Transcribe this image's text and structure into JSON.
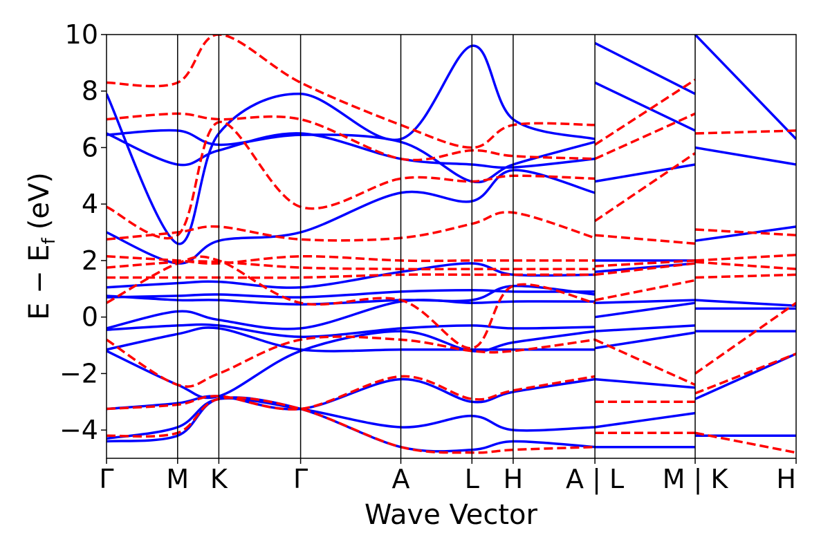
{
  "chart_data": {
    "type": "line",
    "xlabel": "Wave Vector",
    "ylabel": "E − E_f (eV)",
    "ylabel_parts": {
      "main": "E − E",
      "sub": "f",
      "unit": "(eV)"
    },
    "ylim": [
      -5,
      10
    ],
    "yticks": [
      -4,
      -2,
      0,
      2,
      4,
      6,
      8,
      10
    ],
    "ytick_labels": [
      "−4",
      "−2",
      "0",
      "2",
      "4",
      "6",
      "8",
      "10"
    ],
    "xlim": [
      0,
      9.7
    ],
    "kpoints": [
      {
        "label": "Γ",
        "x": 0.0
      },
      {
        "label": "M",
        "x": 1.0
      },
      {
        "label": "K",
        "x": 1.58
      },
      {
        "label": "Γ",
        "x": 2.73
      },
      {
        "label": "A",
        "x": 4.14
      },
      {
        "label": "L",
        "x": 5.14
      },
      {
        "label": "H",
        "x": 5.72
      },
      {
        "label": "A | L",
        "x": 6.87
      },
      {
        "label": "M | K",
        "x": 8.28
      },
      {
        "label": "H",
        "x": 9.7
      }
    ],
    "segment_breaks": [
      6.87,
      8.28
    ],
    "series": [
      {
        "style": "solid",
        "color": "#0000ff",
        "bands": [
          {
            "x": [
              0,
              1.0,
              1.58,
              2.73,
              4.14,
              5.14,
              5.72,
              6.87
            ],
            "y": [
              -4.4,
              -4.2,
              -2.9,
              -3.25,
              -4.6,
              -4.7,
              -4.4,
              -4.6
            ]
          },
          {
            "x": [
              0,
              1.0,
              1.58,
              2.73,
              4.14,
              5.14,
              5.72,
              6.87
            ],
            "y": [
              -4.3,
              -3.9,
              -2.9,
              -3.25,
              -3.9,
              -3.5,
              -4.0,
              -3.9
            ]
          },
          {
            "x": [
              0,
              1.0,
              1.58,
              2.73,
              4.14,
              5.14,
              5.72,
              6.87
            ],
            "y": [
              -3.25,
              -3.05,
              -2.8,
              -3.25,
              -2.2,
              -3.0,
              -2.65,
              -2.2
            ]
          },
          {
            "x": [
              0,
              1.0,
              1.58,
              2.73,
              4.14,
              5.14,
              5.72,
              6.87
            ],
            "y": [
              -1.2,
              -2.4,
              -2.8,
              -1.2,
              -0.5,
              -1.2,
              -0.9,
              -0.5
            ]
          },
          {
            "x": [
              0,
              1.0,
              1.58,
              2.73,
              4.14,
              5.14,
              5.72,
              6.87
            ],
            "y": [
              -1.15,
              -0.6,
              -0.4,
              -1.15,
              -1.15,
              -1.15,
              -1.15,
              -1.15
            ]
          },
          {
            "x": [
              0,
              1.0,
              1.58,
              2.73,
              4.14,
              5.14,
              5.72,
              6.87
            ],
            "y": [
              -0.45,
              -0.3,
              -0.3,
              -0.7,
              -0.4,
              -0.3,
              -0.4,
              -0.35
            ]
          },
          {
            "x": [
              0,
              1.0,
              1.58,
              2.73,
              4.14,
              5.14,
              5.72,
              6.87
            ],
            "y": [
              -0.4,
              0.2,
              -0.1,
              -0.4,
              0.55,
              0.5,
              0.55,
              0.55
            ]
          },
          {
            "x": [
              0,
              1.0,
              1.58,
              2.73,
              4.14,
              5.14,
              5.72,
              6.87
            ],
            "y": [
              0.7,
              0.75,
              0.8,
              0.7,
              0.9,
              0.95,
              0.9,
              0.9
            ]
          },
          {
            "x": [
              0,
              1.0,
              1.58,
              2.73,
              4.14,
              5.14,
              5.72,
              6.87
            ],
            "y": [
              0.75,
              0.6,
              0.6,
              0.45,
              0.6,
              0.6,
              1.1,
              0.8
            ]
          },
          {
            "x": [
              0,
              1.0,
              1.58,
              2.73,
              4.14,
              5.14,
              5.72,
              6.87
            ],
            "y": [
              1.05,
              1.2,
              1.25,
              1.05,
              1.6,
              1.9,
              1.5,
              1.5
            ]
          },
          {
            "x": [
              0,
              1.0,
              1.58,
              2.73,
              4.14,
              5.14,
              5.72,
              6.87
            ],
            "y": [
              3.0,
              1.9,
              2.7,
              3.0,
              4.4,
              4.1,
              5.2,
              4.4
            ]
          },
          {
            "x": [
              0,
              1.0,
              1.58,
              2.73,
              4.14,
              5.14,
              5.72,
              6.87
            ],
            "y": [
              6.5,
              5.4,
              5.9,
              6.5,
              5.6,
              5.4,
              5.3,
              5.6
            ]
          },
          {
            "x": [
              0,
              1.0,
              1.58,
              2.73,
              4.14,
              5.14,
              5.72,
              6.87
            ],
            "y": [
              6.45,
              6.6,
              6.1,
              6.45,
              6.2,
              4.8,
              5.4,
              6.2
            ]
          },
          {
            "x": [
              0,
              1.0,
              1.58,
              2.73,
              4.14,
              5.14,
              5.72,
              6.87
            ],
            "y": [
              7.9,
              2.6,
              6.5,
              7.9,
              6.3,
              9.6,
              7.0,
              6.3
            ]
          },
          {
            "x": [
              6.87,
              8.28
            ],
            "y": [
              -4.6,
              -4.6
            ]
          },
          {
            "x": [
              6.87,
              8.28
            ],
            "y": [
              -3.9,
              -3.4
            ]
          },
          {
            "x": [
              6.87,
              8.28
            ],
            "y": [
              -2.2,
              -2.5
            ]
          },
          {
            "x": [
              6.87,
              8.28
            ],
            "y": [
              -1.1,
              -0.55
            ]
          },
          {
            "x": [
              6.87,
              8.28
            ],
            "y": [
              -0.5,
              -0.3
            ]
          },
          {
            "x": [
              6.87,
              8.28
            ],
            "y": [
              0.0,
              0.5
            ]
          },
          {
            "x": [
              6.87,
              8.28
            ],
            "y": [
              0.5,
              0.6
            ]
          },
          {
            "x": [
              6.87,
              8.28
            ],
            "y": [
              1.6,
              1.9
            ]
          },
          {
            "x": [
              6.87,
              8.28
            ],
            "y": [
              2.0,
              2.0
            ]
          },
          {
            "x": [
              6.87,
              8.28
            ],
            "y": [
              4.8,
              5.4
            ]
          },
          {
            "x": [
              6.87,
              8.28
            ],
            "y": [
              8.3,
              6.6
            ]
          },
          {
            "x": [
              6.87,
              8.28
            ],
            "y": [
              9.7,
              7.9
            ]
          },
          {
            "x": [
              8.28,
              9.7
            ],
            "y": [
              -4.2,
              -4.2
            ]
          },
          {
            "x": [
              8.28,
              9.7
            ],
            "y": [
              -2.9,
              -1.3
            ]
          },
          {
            "x": [
              8.28,
              9.7
            ],
            "y": [
              -0.5,
              -0.5
            ]
          },
          {
            "x": [
              8.28,
              9.7
            ],
            "y": [
              0.3,
              0.3
            ]
          },
          {
            "x": [
              8.28,
              9.7
            ],
            "y": [
              0.6,
              0.4
            ]
          },
          {
            "x": [
              8.28,
              9.7
            ],
            "y": [
              2.7,
              3.2
            ]
          },
          {
            "x": [
              8.28,
              9.7
            ],
            "y": [
              6.0,
              5.4
            ]
          },
          {
            "x": [
              8.28,
              9.7
            ],
            "y": [
              10.0,
              6.3
            ]
          }
        ]
      },
      {
        "style": "dashed",
        "color": "#ff0000",
        "bands": [
          {
            "x": [
              0,
              1.0,
              1.58,
              2.73,
              4.14,
              5.14,
              5.72,
              6.87
            ],
            "y": [
              -4.2,
              -4.1,
              -2.9,
              -3.25,
              -4.6,
              -4.8,
              -4.7,
              -4.6
            ]
          },
          {
            "x": [
              0,
              1.0,
              1.58,
              2.73,
              4.14,
              5.14,
              5.72,
              6.87
            ],
            "y": [
              -3.25,
              -3.1,
              -2.8,
              -3.25,
              -2.1,
              -2.9,
              -2.6,
              -2.1
            ]
          },
          {
            "x": [
              0,
              1.0,
              1.58,
              2.73,
              4.14,
              5.14,
              5.72,
              6.87
            ],
            "y": [
              -0.8,
              -2.4,
              -2.0,
              -0.8,
              -0.8,
              -1.2,
              -1.2,
              -0.8
            ]
          },
          {
            "x": [
              0,
              1.0,
              1.58,
              2.73,
              4.14,
              5.14,
              5.72,
              6.87
            ],
            "y": [
              0.5,
              1.9,
              2.0,
              0.5,
              0.6,
              -1.1,
              1.1,
              0.5
            ]
          },
          {
            "x": [
              0,
              1.0,
              1.58,
              2.73,
              4.14,
              5.14,
              5.72,
              6.87
            ],
            "y": [
              1.4,
              1.4,
              1.4,
              1.4,
              1.5,
              1.5,
              1.5,
              1.5
            ]
          },
          {
            "x": [
              0,
              1.0,
              1.58,
              2.73,
              4.14,
              5.14,
              5.72,
              6.87
            ],
            "y": [
              1.75,
              1.95,
              1.95,
              1.75,
              1.7,
              1.7,
              1.7,
              1.7
            ]
          },
          {
            "x": [
              0,
              1.0,
              1.58,
              2.73,
              4.14,
              5.14,
              5.72,
              6.87
            ],
            "y": [
              2.15,
              2.0,
              1.9,
              2.15,
              2.0,
              2.0,
              2.0,
              2.0
            ]
          },
          {
            "x": [
              0,
              1.0,
              1.58,
              2.73,
              4.14,
              5.14,
              5.72,
              6.87
            ],
            "y": [
              2.75,
              3.0,
              3.2,
              2.75,
              2.8,
              3.3,
              3.7,
              2.8
            ]
          },
          {
            "x": [
              0,
              1.0,
              1.58,
              2.73,
              4.14,
              5.14,
              5.72,
              6.87
            ],
            "y": [
              3.9,
              2.9,
              6.9,
              3.9,
              4.9,
              4.8,
              5.0,
              4.9
            ]
          },
          {
            "x": [
              0,
              1.0,
              1.58,
              2.73,
              4.14,
              5.14,
              5.72,
              6.87
            ],
            "y": [
              7.0,
              7.2,
              7.0,
              7.0,
              5.6,
              5.9,
              5.7,
              5.6
            ]
          },
          {
            "x": [
              0,
              1.0,
              1.58,
              2.73,
              4.14,
              5.14,
              5.72,
              6.87
            ],
            "y": [
              8.3,
              8.3,
              10.0,
              8.3,
              6.8,
              6.0,
              6.8,
              6.8
            ]
          },
          {
            "x": [
              6.87,
              8.28
            ],
            "y": [
              -4.1,
              -4.1
            ]
          },
          {
            "x": [
              6.87,
              8.28
            ],
            "y": [
              -3.0,
              -3.0
            ]
          },
          {
            "x": [
              6.87,
              8.28
            ],
            "y": [
              -0.8,
              -2.4
            ]
          },
          {
            "x": [
              6.87,
              8.28
            ],
            "y": [
              0.6,
              1.3
            ]
          },
          {
            "x": [
              6.87,
              8.28
            ],
            "y": [
              1.5,
              1.9
            ]
          },
          {
            "x": [
              6.87,
              8.28
            ],
            "y": [
              1.8,
              2.0
            ]
          },
          {
            "x": [
              6.87,
              8.28
            ],
            "y": [
              2.9,
              2.6
            ]
          },
          {
            "x": [
              6.87,
              8.28
            ],
            "y": [
              3.4,
              5.8
            ]
          },
          {
            "x": [
              6.87,
              8.28
            ],
            "y": [
              5.6,
              7.2
            ]
          },
          {
            "x": [
              6.87,
              8.28
            ],
            "y": [
              6.1,
              8.4
            ]
          },
          {
            "x": [
              8.28,
              9.7
            ],
            "y": [
              -4.1,
              -4.8
            ]
          },
          {
            "x": [
              8.28,
              9.7
            ],
            "y": [
              -2.7,
              -1.3
            ]
          },
          {
            "x": [
              8.28,
              9.7
            ],
            "y": [
              -2.0,
              0.5
            ]
          },
          {
            "x": [
              8.28,
              9.7
            ],
            "y": [
              1.4,
              1.5
            ]
          },
          {
            "x": [
              8.28,
              9.7
            ],
            "y": [
              1.95,
              1.7
            ]
          },
          {
            "x": [
              8.28,
              9.7
            ],
            "y": [
              2.0,
              2.2
            ]
          },
          {
            "x": [
              8.28,
              9.7
            ],
            "y": [
              3.1,
              2.9
            ]
          },
          {
            "x": [
              8.28,
              9.7
            ],
            "y": [
              6.5,
              6.6
            ]
          }
        ]
      }
    ]
  }
}
